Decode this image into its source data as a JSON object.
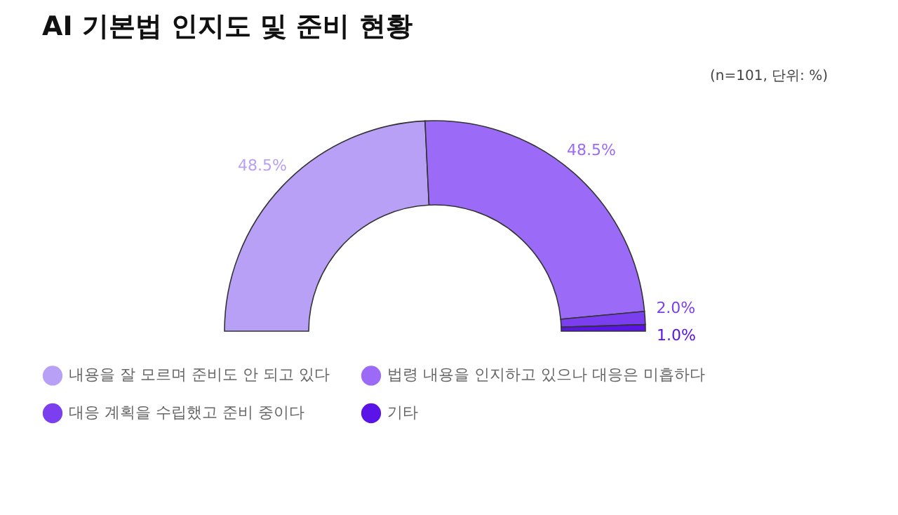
{
  "chart_data": {
    "type": "donut",
    "title": "AI 기본법 인지도 및 준비 현황",
    "annotations": [
      "(n=101, 단위: %)"
    ],
    "categories": [
      "내용을 잘 모르며 준비도 안 되고 있다",
      "법령 내용을 인지하고 있으나 대응은 미흡하다",
      "대응 계획을 수립했고 준비 중이다",
      "기타"
    ],
    "values": [
      48.5,
      48.5,
      2.0,
      1.0
    ],
    "colors": [
      "#b9a0f7",
      "#9b6bf8",
      "#7b3ff0",
      "#5a14e8"
    ],
    "value_labels": [
      "48.5%",
      "48.5%",
      "2.0%",
      "1.0%"
    ],
    "legend": "bottom"
  }
}
